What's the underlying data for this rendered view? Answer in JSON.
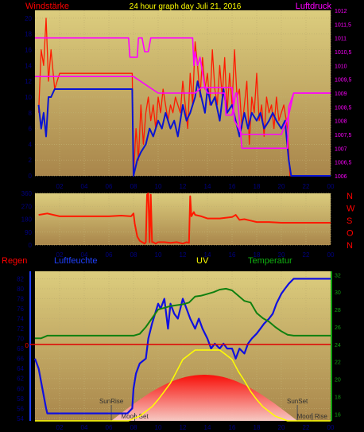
{
  "header": {
    "left_label": "Windstärke",
    "center_title": "24 hour graph day   Juli 21, 2016",
    "right_label": "Luftdruck"
  },
  "colors": {
    "wind": "#ff1a00",
    "wind_avg": "#0a14d2",
    "pressure": "#ff00ff",
    "direction": "#ff1a00",
    "rain": "#e00000",
    "humidity": "#1010e0",
    "uv": "#ffff00",
    "temperature": "#108010",
    "plot_top": "#d8c97a",
    "plot_bottom": "#a8844a",
    "sun_fill": "#ff0000"
  },
  "chart_data": [
    {
      "type": "line",
      "title": "24 hour graph day   Juli 21, 2016",
      "xlabel": "",
      "x_ticks": [
        "02",
        "04",
        "06",
        "08",
        "10",
        "12",
        "14",
        "16",
        "18",
        "20",
        "22",
        "00"
      ],
      "xlim": [
        0,
        24
      ],
      "ylabel": "Windstärke",
      "ylim": [
        0,
        21
      ],
      "y_ticks": [
        "0",
        "2",
        "4",
        "6",
        "8",
        "10",
        "12",
        "14",
        "16",
        "18",
        "20"
      ],
      "y2label": "Luftdruck",
      "y2lim": [
        1006,
        1012
      ],
      "y2_ticks": [
        "1006",
        "1006,5",
        "1007",
        "1007,5",
        "1008",
        "1008,5",
        "1009",
        "1009,5",
        "1010",
        "1010,5",
        "1011",
        "1011,5",
        "1012"
      ],
      "series": [
        {
          "name": "Windstärke",
          "role": "gust",
          "x": [
            0.3,
            0.5,
            0.7,
            0.9,
            1.1,
            1.3,
            1.6,
            2,
            3,
            4,
            5,
            6,
            7,
            7.9,
            8,
            8.2,
            8.4,
            8.6,
            8.8,
            9,
            9.2,
            9.4,
            9.6,
            9.8,
            10,
            10.2,
            10.4,
            10.6,
            10.8,
            11,
            11.2,
            11.4,
            11.6,
            11.8,
            12,
            12.2,
            12.4,
            12.6,
            12.8,
            13,
            13.2,
            13.4,
            13.6,
            13.8,
            14,
            14.2,
            14.4,
            14.6,
            14.8,
            15,
            15.2,
            15.4,
            15.6,
            15.8,
            16,
            16.2,
            16.4,
            16.6,
            16.8,
            17,
            17.2,
            17.4,
            17.6,
            17.8,
            18,
            18.2,
            18.4,
            18.6,
            18.8,
            19,
            19.2,
            19.4,
            19.6,
            19.8,
            20,
            20.2,
            20.5,
            20.7,
            21,
            22,
            23,
            24
          ],
          "values": [
            8,
            16,
            14,
            20,
            12,
            16,
            11,
            13,
            13,
            13,
            13,
            13,
            13,
            13,
            0,
            6,
            2,
            9,
            4,
            8,
            10,
            7,
            9,
            6,
            10,
            8,
            11,
            9,
            7,
            9,
            8,
            10,
            9,
            8,
            12,
            9,
            6,
            13,
            9,
            17,
            14,
            10,
            15,
            11,
            13,
            9,
            16,
            11,
            9,
            14,
            10,
            15,
            8,
            13,
            9,
            16,
            10,
            11,
            6,
            9,
            12,
            4,
            10,
            8,
            13,
            7,
            9,
            5,
            10,
            8,
            9,
            6,
            10,
            7,
            8,
            9,
            6,
            0,
            0,
            0,
            0,
            0
          ]
        },
        {
          "name": "Windstärke",
          "role": "average",
          "x": [
            0.3,
            0.5,
            0.7,
            0.9,
            1.1,
            1.3,
            1.6,
            2,
            3,
            4,
            5,
            6,
            7,
            7.9,
            8,
            8.3,
            8.6,
            9,
            9.3,
            9.6,
            10,
            10.3,
            10.6,
            11,
            11.3,
            11.6,
            12,
            12.3,
            12.6,
            13,
            13.2,
            13.5,
            13.8,
            14,
            14.3,
            14.6,
            15,
            15.3,
            15.6,
            16,
            16.3,
            16.6,
            17,
            17.3,
            17.6,
            18,
            18.3,
            18.6,
            19,
            19.3,
            19.6,
            20,
            20.3,
            20.6,
            20.8,
            22,
            24
          ],
          "values": [
            9,
            6,
            8,
            5,
            10,
            10,
            11,
            11,
            11,
            11,
            11,
            11,
            11,
            11,
            0,
            2,
            3,
            4,
            6,
            5,
            7,
            6,
            8,
            6,
            7,
            5,
            9,
            7,
            8,
            10,
            12,
            10,
            8,
            11,
            9,
            10,
            7,
            11,
            8,
            9,
            7,
            5,
            8,
            6,
            8,
            7,
            8,
            6,
            7,
            8,
            7,
            6,
            7,
            2,
            0,
            0,
            0
          ]
        },
        {
          "name": "Luftdruck",
          "role": "pressure",
          "axis": "y2",
          "x": [
            0,
            1,
            2,
            3,
            4,
            5,
            6,
            7,
            7.6,
            7.7,
            8.3,
            8.4,
            8.7,
            8.9,
            9.2,
            9.4,
            10,
            10.4,
            11,
            12,
            12.8,
            12.9,
            13,
            13.2,
            13.4,
            13.8,
            14,
            15,
            15.4,
            15.5,
            16,
            16.3,
            16.4,
            16.8,
            17,
            17.5,
            18,
            19,
            20,
            20.5,
            20.6,
            21,
            22,
            23,
            24
          ],
          "values": [
            1011,
            1011,
            1011,
            1011,
            1011,
            1011,
            1011,
            1011,
            1011,
            1010.3,
            1010.3,
            1011,
            1011,
            1010.5,
            1010.5,
            1011,
            1011,
            1011,
            1011,
            1011,
            1011,
            1010,
            1010.5,
            1010,
            1010.3,
            1009.2,
            1009,
            1009,
            1009,
            1008.2,
            1008.2,
            1009,
            1009,
            1007,
            1007,
            1007,
            1007,
            1007,
            1007,
            1007,
            1008.5,
            1009,
            1009,
            1009,
            1009
          ]
        },
        {
          "name": "Luftdruck",
          "role": "pressure-trend",
          "axis": "y2",
          "x": [
            0,
            2,
            4,
            6,
            8,
            10,
            12,
            13,
            13.5,
            14,
            16,
            16.2,
            16.8,
            18,
            20,
            20.6,
            21,
            24
          ],
          "values": [
            1009.6,
            1009.6,
            1009.6,
            1009.6,
            1009.6,
            1009,
            1009,
            1009,
            1009.2,
            1009.2,
            1009.2,
            1008,
            1007.5,
            1007.5,
            1007.5,
            1008.2,
            1009,
            1009
          ]
        }
      ]
    },
    {
      "type": "line",
      "title": "",
      "x_ticks": [
        "02",
        "04",
        "06",
        "08",
        "10",
        "12",
        "14",
        "16",
        "18",
        "20",
        "22",
        "00"
      ],
      "xlim": [
        0,
        24
      ],
      "ylim": [
        0,
        360
      ],
      "y_ticks": [
        "0",
        "90",
        "180",
        "270",
        "360"
      ],
      "right_labels": [
        "N",
        "W",
        "S",
        "O",
        "N"
      ],
      "series": [
        {
          "name": "Windrichtung",
          "x": [
            0.3,
            1,
            2,
            3,
            4,
            5,
            6,
            7,
            7.8,
            8,
            8.1,
            8.3,
            8.5,
            8.7,
            8.9,
            9,
            9.1,
            9.2,
            9.3,
            9.4,
            9.5,
            9.6,
            9.8,
            10,
            10.5,
            11,
            11.5,
            12,
            12.3,
            12.5,
            12.6,
            12.7,
            12.9,
            13,
            13.5,
            14,
            15,
            16,
            16.3,
            16.6,
            17,
            17.5,
            18,
            19,
            20,
            21,
            22,
            23,
            24
          ],
          "values": [
            210,
            220,
            200,
            200,
            200,
            200,
            200,
            205,
            200,
            220,
            150,
            60,
            30,
            20,
            10,
            20,
            350,
            360,
            20,
            350,
            20,
            20,
            10,
            20,
            20,
            15,
            20,
            10,
            20,
            15,
            340,
            200,
            230,
            210,
            200,
            185,
            185,
            195,
            210,
            175,
            180,
            170,
            160,
            160,
            155,
            155,
            155,
            155,
            155
          ]
        }
      ]
    },
    {
      "type": "line",
      "title": "",
      "x_ticks": [
        "02",
        "04",
        "06",
        "08",
        "10",
        "12",
        "14",
        "16",
        "18",
        "20",
        "22",
        "00"
      ],
      "xlim": [
        0,
        24
      ],
      "labels": {
        "rain": "Regen",
        "humidity": "Luftfeuchte",
        "uv": "UV",
        "temperature": "Temperatur"
      },
      "humidity_ticks": [
        "54",
        "56",
        "58",
        "60",
        "62",
        "64",
        "66",
        "68",
        "70",
        "72",
        "74",
        "76",
        "78",
        "80",
        "82"
      ],
      "humidity_lim": [
        53.5,
        83.5
      ],
      "temperature_ticks": [
        "16",
        "18",
        "20",
        "22",
        "24",
        "26",
        "28",
        "30",
        "32"
      ],
      "temperature_lim": [
        15.2,
        32.4
      ],
      "rain_tick": "0",
      "sun_markers": [
        {
          "label": "SunRise",
          "x": 6.2
        },
        {
          "label": "SunSet",
          "x": 21.3
        }
      ],
      "moon_markers": [
        {
          "label": "Moon Set",
          "x": 8.1
        },
        {
          "label": "Moon Rise",
          "x": 22.5
        }
      ],
      "series": [
        {
          "name": "Luftfeuchte",
          "role": "humidity",
          "x": [
            0,
            0.3,
            0.6,
            0.9,
            1,
            2,
            3,
            4,
            5,
            6,
            7,
            7.5,
            7.9,
            8,
            8.2,
            8.5,
            9,
            9.2,
            9.5,
            10,
            10.2,
            10.5,
            10.8,
            11,
            11.3,
            11.6,
            12,
            12.3,
            12.6,
            13,
            13.3,
            13.6,
            14,
            14.3,
            14.6,
            15,
            15.3,
            15.6,
            16,
            16.3,
            16.6,
            17,
            17.3,
            17.6,
            18,
            18.3,
            18.6,
            19,
            19.3,
            19.6,
            20,
            20.3,
            20.6,
            21,
            21.5,
            22,
            23,
            24
          ],
          "values": [
            66,
            64,
            60,
            56,
            55,
            55,
            55,
            55,
            55,
            55,
            55,
            55,
            56,
            60,
            63,
            65,
            66,
            70,
            73,
            77,
            76,
            78,
            72,
            77,
            75,
            74,
            78,
            76,
            74,
            72,
            74,
            72,
            70,
            68,
            69,
            68,
            69,
            68,
            68,
            66,
            68,
            67,
            69,
            70,
            71,
            72,
            73,
            74,
            75,
            77,
            79,
            80,
            81,
            82,
            82,
            82,
            82,
            82
          ]
        },
        {
          "name": "Temperatur",
          "role": "temperature",
          "x": [
            0,
            0.5,
            1,
            2,
            3,
            4,
            5,
            6,
            7,
            8,
            8.5,
            9,
            9.5,
            10,
            10.5,
            11,
            11.5,
            12,
            12.5,
            13,
            13.5,
            14,
            14.5,
            15,
            15.5,
            16,
            16.5,
            17,
            17.5,
            18,
            18.5,
            19,
            19.5,
            20,
            20.5,
            21,
            22,
            23,
            24
          ],
          "values": [
            24.7,
            24.7,
            25,
            25,
            25,
            25,
            25,
            25,
            25,
            25,
            25.2,
            26,
            27,
            28,
            28.2,
            28.4,
            28.5,
            28.6,
            28.8,
            29.5,
            29.6,
            29.8,
            30,
            30.3,
            30.4,
            30.2,
            29.6,
            29,
            28.8,
            27.6,
            27,
            26.6,
            26,
            25.5,
            25.1,
            25,
            25,
            25,
            25
          ]
        },
        {
          "name": "UV",
          "role": "uv",
          "x": [
            0,
            6,
            7.6,
            8,
            8.5,
            9,
            9.5,
            10,
            10.5,
            11,
            11.5,
            12,
            12.5,
            13,
            13.5,
            14,
            14.5,
            15,
            15.5,
            16,
            16.5,
            17,
            17.5,
            18,
            18.5,
            19,
            19.5,
            20,
            20.5,
            21,
            22,
            24
          ],
          "values": [
            0,
            0,
            0,
            0.2,
            0.4,
            0.8,
            1.2,
            1.8,
            2.5,
            3.2,
            4.2,
            5.2,
            5.6,
            6,
            6,
            6,
            6,
            6,
            5.6,
            5.2,
            4.2,
            3.4,
            2.5,
            1.8,
            1.2,
            0.8,
            0.4,
            0.2,
            0,
            0,
            0,
            0
          ]
        },
        {
          "name": "Regen",
          "role": "rain",
          "x": [
            0,
            24
          ],
          "values": [
            0,
            0
          ]
        }
      ]
    }
  ]
}
